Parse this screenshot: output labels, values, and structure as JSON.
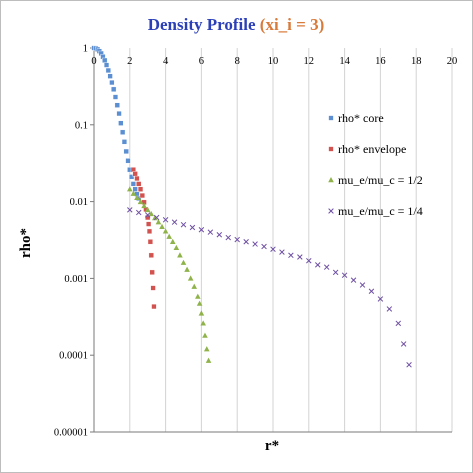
{
  "chart_data": {
    "type": "scatter",
    "title": "Density Profile",
    "title_suffix": "(xi_i = 3)",
    "title_color": "#2a3fb8",
    "title_suffix_color": "#d87a3a",
    "xlabel": "r*",
    "ylabel": "rho*",
    "xlim": [
      0,
      20
    ],
    "ylim": [
      1e-05,
      1
    ],
    "y_scale": "log",
    "x_ticks": [
      "0",
      "2",
      "4",
      "6",
      "8",
      "10",
      "12",
      "14",
      "16",
      "18",
      "20"
    ],
    "y_ticks": [
      "1",
      "0.1",
      "0.01",
      "0.001",
      "0.0001",
      "0.00001"
    ],
    "grid": "vertical",
    "legend_position": "right",
    "series": [
      {
        "name": "rho* core",
        "marker": "square",
        "color": "#5b8fd1",
        "x": [
          0.0,
          0.1,
          0.2,
          0.3,
          0.4,
          0.5,
          0.6,
          0.7,
          0.8,
          0.9,
          1.0,
          1.1,
          1.2,
          1.3,
          1.4,
          1.5,
          1.6,
          1.7,
          1.8,
          1.9,
          2.0,
          2.1,
          2.2,
          2.3,
          2.4,
          2.5
        ],
        "y": [
          1.0,
          0.99,
          0.96,
          0.91,
          0.85,
          0.77,
          0.69,
          0.6,
          0.51,
          0.43,
          0.355,
          0.29,
          0.23,
          0.18,
          0.14,
          0.105,
          0.08,
          0.06,
          0.045,
          0.034,
          0.026,
          0.021,
          0.017,
          0.0145,
          0.0125,
          0.011
        ]
      },
      {
        "name": "rho* envelope",
        "marker": "square",
        "color": "#d1524e",
        "x": [
          2.2,
          2.3,
          2.4,
          2.5,
          2.6,
          2.7,
          2.8,
          2.9,
          3.0,
          3.05,
          3.1,
          3.15,
          3.2,
          3.25,
          3.3,
          3.35
        ],
        "y": [
          0.026,
          0.023,
          0.02,
          0.017,
          0.0145,
          0.012,
          0.0098,
          0.0079,
          0.0062,
          0.0051,
          0.0041,
          0.003,
          0.002,
          0.0012,
          0.00075,
          0.00043
        ]
      },
      {
        "name": "mu_e/mu_c = 1/2",
        "marker": "triangle",
        "color": "#8fb34a",
        "x": [
          2.0,
          2.2,
          2.4,
          2.6,
          2.8,
          3.0,
          3.2,
          3.4,
          3.6,
          3.8,
          4.0,
          4.2,
          4.4,
          4.6,
          4.8,
          5.0,
          5.2,
          5.4,
          5.6,
          5.8,
          5.9,
          6.0,
          6.1,
          6.2,
          6.3,
          6.4
        ],
        "y": [
          0.0145,
          0.0127,
          0.0112,
          0.0099,
          0.0088,
          0.0078,
          0.0069,
          0.0061,
          0.0054,
          0.0047,
          0.0041,
          0.0035,
          0.003,
          0.0025,
          0.002,
          0.0016,
          0.0013,
          0.001,
          0.00078,
          0.00058,
          0.00047,
          0.00035,
          0.00026,
          0.00018,
          0.00012,
          8.5e-05
        ]
      },
      {
        "name": "mu_e/mu_c = 1/4",
        "marker": "x",
        "color": "#6e4fa3",
        "x": [
          2.0,
          2.5,
          3.0,
          3.5,
          4.0,
          4.5,
          5.0,
          5.5,
          6.0,
          6.5,
          7.0,
          7.5,
          8.0,
          8.5,
          9.0,
          9.5,
          10.0,
          10.5,
          11.0,
          11.5,
          12.0,
          12.5,
          13.0,
          13.5,
          14.0,
          14.5,
          15.0,
          15.5,
          16.0,
          16.5,
          17.0,
          17.3,
          17.6
        ],
        "y": [
          0.0078,
          0.0072,
          0.0067,
          0.0062,
          0.0058,
          0.0054,
          0.005,
          0.0046,
          0.0043,
          0.004,
          0.0037,
          0.0034,
          0.0032,
          0.003,
          0.0028,
          0.0026,
          0.0024,
          0.0022,
          0.002,
          0.0019,
          0.0017,
          0.0015,
          0.0014,
          0.0012,
          0.0011,
          0.00095,
          0.00082,
          0.00068,
          0.00054,
          0.0004,
          0.00026,
          0.00014,
          7.5e-05
        ]
      }
    ]
  }
}
